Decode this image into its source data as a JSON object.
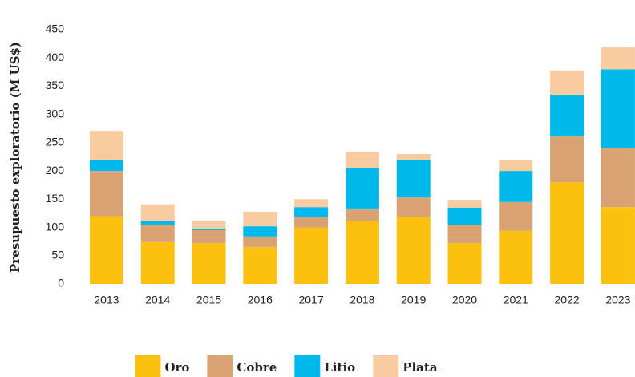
{
  "chart_data": {
    "type": "stacked_bar",
    "y_label": "Presupuesto  exploratorio (M US$)",
    "categories": [
      "2013",
      "2014",
      "2015",
      "2016",
      "2017",
      "2018",
      "2019",
      "2020",
      "2021",
      "2022",
      "2023"
    ],
    "series": [
      {
        "name": "Oro",
        "color": "#fbc10e",
        "values": [
          120,
          74,
          72,
          65,
          100,
          111,
          119,
          72,
          94,
          180,
          136
        ]
      },
      {
        "name": "Cobre",
        "color": "#d9a373",
        "values": [
          80,
          30,
          23,
          19,
          19,
          22,
          34,
          32,
          51,
          81,
          105
        ]
      },
      {
        "name": "Litio",
        "color": "#00b9ec",
        "values": [
          19,
          8,
          3,
          18,
          17,
          73,
          66,
          31,
          55,
          74,
          139
        ]
      },
      {
        "name": "Plata",
        "color": "#f8cba0",
        "values": [
          52,
          29,
          14,
          26,
          14,
          28,
          11,
          14,
          20,
          43,
          39
        ]
      }
    ],
    "ylim": [
      0,
      450
    ],
    "yticks": [
      0,
      50,
      100,
      150,
      200,
      250,
      300,
      350,
      400,
      450
    ],
    "legend": "bottom",
    "grid": false
  }
}
